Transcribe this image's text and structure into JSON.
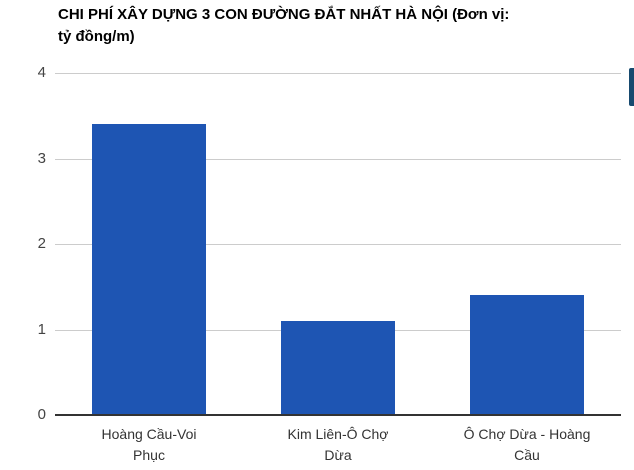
{
  "title": {
    "lines": [
      "CHI PHÍ XÂY DỰNG 3 CON ĐƯỜNG ĐẮT NHẤT HÀ NỘI (Đơn vị:",
      "tỷ đồng/m)"
    ]
  },
  "chart_data": {
    "type": "bar",
    "title": "CHI PHÍ XÂY DỰNG 3 CON ĐƯỜNG ĐẮT NHẤT HÀ NỘI (Đơn vị: tỷ đồng/m)",
    "unit": "tỷ đồng/m",
    "categories": [
      "Hoàng Cầu-Voi Phục",
      "Kim Liên-Ô Chợ Dừa",
      "Ô Chợ Dừa - Hoàng Cầu"
    ],
    "categories_wrapped": [
      [
        "Hoàng Cầu-Voi",
        "Phục"
      ],
      [
        "Kim Liên-Ô Chợ",
        "Dừa"
      ],
      [
        "Ô Chợ Dừa - Hoàng",
        "Cầu"
      ]
    ],
    "values": [
      3.4,
      1.1,
      1.4
    ],
    "xlabel": "",
    "ylabel": "",
    "ylim": [
      0,
      4
    ],
    "yticks": [
      0,
      1,
      2,
      3,
      4
    ],
    "grid": true,
    "legend": "none"
  },
  "colors": {
    "bar": "#1e55b3",
    "gridline": "#cccccc",
    "axis_line": "#333333",
    "ytick_label": "#444444",
    "category_label": "#333333",
    "title": "#000000",
    "background": "#ffffff",
    "scrollbar_thumb": "#174a6f"
  }
}
